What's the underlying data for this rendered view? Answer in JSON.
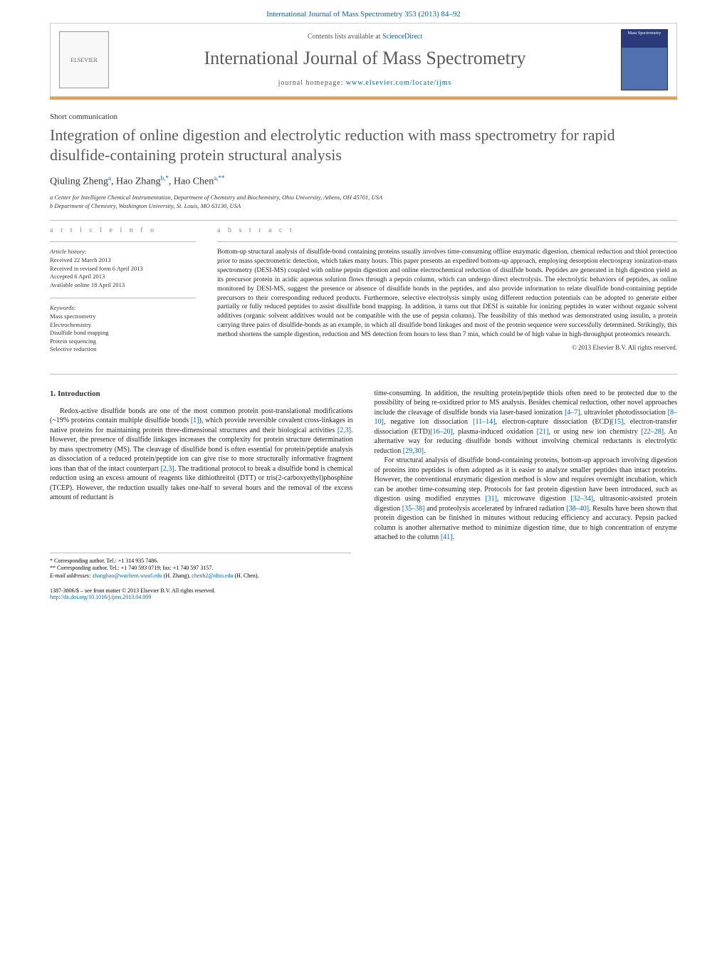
{
  "colors": {
    "link": "#0066aa",
    "accent_bar": "#e8a23d",
    "heading_gray": "#5a5a5a",
    "rule": "#bbbbbb",
    "body_text": "#222222",
    "muted": "#888888"
  },
  "typography": {
    "journal_name_size_pt": 26,
    "title_size_pt": 22,
    "body_size_pt": 10,
    "abstract_size_pt": 9.5,
    "small_size_pt": 8.5
  },
  "header": {
    "citation": "International Journal of Mass Spectrometry 353 (2013) 84–92",
    "contents_at": "Contents lists available at ",
    "contents_link": "ScienceDirect",
    "journal_name": "International Journal of Mass Spectrometry",
    "homepage_label": "journal homepage: ",
    "homepage_url": "www.elsevier.com/locate/ijms",
    "publisher_logo_label": "ELSEVIER",
    "cover_text": "Mass Spectrometry"
  },
  "article": {
    "type": "Short communication",
    "title": "Integration of online digestion and electrolytic reduction with mass spectrometry for rapid disulfide-containing protein structural analysis",
    "authors_html": "Qiuling Zheng",
    "author_a_sup": "a",
    "author2": "Hao Zhang",
    "author_b_sup": "b,*",
    "author3": "Hao Chen",
    "author_c_sup": "a,**",
    "affil_a": "a Center for Intelligent Chemical Instrumentation, Department of Chemistry and Biochemistry, Ohio University, Athens, OH 45701, USA",
    "affil_b": "b Department of Chemistry, Washington University, St. Louis, MO 63130, USA"
  },
  "article_info": {
    "heading": "a r t i c l e   i n f o",
    "history_label": "Article history:",
    "received": "Received 22 March 2013",
    "revised": "Received in revised form 6 April 2013",
    "accepted": "Accepted 6 April 2013",
    "online": "Available online 18 April 2013",
    "keywords_label": "Keywords:",
    "keywords": [
      "Mass spectrometry",
      "Electrochemistry",
      "Disulfide bond mapping",
      "Protein sequencing",
      "Selective reduction"
    ]
  },
  "abstract": {
    "heading": "a b s t r a c t",
    "text": "Bottom-up structural analysis of disulfide-bond containing proteins usually involves time-consuming offline enzymatic digestion, chemical reduction and thiol protection prior to mass spectrometric detection, which takes many hours. This paper presents an expedited bottom-up approach, employing desorption electrospray ionization-mass spectrometry (DESI-MS) coupled with online pepsin digestion and online electrochemical reduction of disulfide bonds. Peptides are generated in high digestion yield as its precursor protein in acidic aqueous solution flows through a pepsin column, which can undergo direct electrolysis. The electrolytic behaviors of peptides, as online monitored by DESI-MS, suggest the presence or absence of disulfide bonds in the peptides, and also provide information to relate disulfide bond-containing peptide precursors to their corresponding reduced products. Furthermore, selective electrolysis simply using different reduction potentials can be adopted to generate either partially or fully reduced peptides to assist disulfide bond mapping. In addition, it turns out that DESI is suitable for ionizing peptides in water without organic solvent additives (organic solvent additives would not be compatible with the use of pepsin column). The feasibility of this method was demonstrated using insulin, a protein carrying three pairs of disulfide-bonds as an example, in which all disulfide bond linkages and most of the protein sequence were successfully determined. Strikingly, this method shortens the sample digestion, reduction and MS detection from hours to less than 7 min, which could be of high value in high-throughput proteomics research.",
    "copyright": "© 2013 Elsevier B.V. All rights reserved."
  },
  "body": {
    "section1_heading": "1. Introduction",
    "col1_p1_a": "Redox-active disulfide bonds are one of the most common protein post-translational modifications (~19% proteins contain multiple disulfide bonds ",
    "ref1": "[1]",
    "col1_p1_b": "), which provide reversible covalent cross-linkages in native proteins for maintaining protein three-dimensional structures and their biological activities ",
    "ref2_3": "[2,3]",
    "col1_p1_c": ". However, the presence of disulfide linkages increases the complexity for protein structure determination by mass spectrometry (MS). The cleavage of disulfide bond is often essential for protein/peptide analysis as dissociation of a reduced protein/peptide ion can give rise to more structurally informative fragment ions than that of the intact counterpart ",
    "col1_p1_d": ". The traditional protocol to break a disulfide bond is chemical reduction using an excess amount of reagents like dithiothreitol (DTT) or tris(2-carboxyethyl)phosphine (TCEP). However, the reduction usually takes one-half to several hours and the removal of the excess amount of reductant is",
    "col2_p1_a": "time-consuming. In addition, the resulting protein/peptide thiols often need to be protected due to the possibility of being re-oxidized prior to MS analysis. Besides chemical reduction, other novel approaches include the cleavage of disulfide bonds via laser-based ionization ",
    "ref4_7": "[4–7]",
    "col2_p1_b": ", ultraviolet photodissociation ",
    "ref8_10": "[8–10]",
    "col2_p1_c": ", negative ion dissociation ",
    "ref11_14": "[11–14]",
    "col2_p1_d": ", electron-capture dissociation (ECD)",
    "ref15": "[15]",
    "col2_p1_e": ", electron-transfer dissociation (ETD)",
    "ref16_20": "[16–20]",
    "col2_p1_f": ", plasma-induced oxidation ",
    "ref21": "[21]",
    "col2_p1_g": ", or using new ion chemistry ",
    "ref22_28": "[22–28]",
    "col2_p1_h": ". An alternative way for reducing disulfide bonds without involving chemical reductants is electrolytic reduction ",
    "ref29_30": "[29,30]",
    "col2_p1_i": ".",
    "col2_p2_a": "For structural analysis of disulfide bond-containing proteins, bottom-up approach involving digestion of proteins into peptides is often adopted as it is easier to analyze smaller peptides than intact proteins. However, the conventional enzymatic digestion method is slow and requires overnight incubation, which can be another time-consuming step. Protocols for fast protein digestion have been introduced, such as digestion using modified enzymes ",
    "ref31": "[31]",
    "col2_p2_b": ", microwave digestion ",
    "ref32_34": "[32–34]",
    "col2_p2_c": ", ultrasonic-assisted protein digestion ",
    "ref35_38": "[35–38]",
    "col2_p2_d": " and proteolysis accelerated by infrared radiation ",
    "ref38_40": "[38–40]",
    "col2_p2_e": ". Results have been shown that protein digestion can be finished in minutes without reducing efficiency and accuracy. Pepsin packed column is another alternative method to minimize digestion time, due to high concentration of enzyme attached to the column ",
    "ref41": "[41]",
    "col2_p2_f": "."
  },
  "footnotes": {
    "corr1": "* Corresponding author. Tel.: +1 314 935 7486.",
    "corr2": "** Corresponding author. Tel.: +1 740 593 0719; fax: +1 740 597 3157.",
    "email_label": "E-mail addresses: ",
    "email1": "zhanghao@wuchem.wustl.edu",
    "email1_name": " (H. Zhang), ",
    "email2": "chenh2@ohio.edu",
    "email2_name": " (H. Chen)."
  },
  "doi": {
    "issn": "1387-3806/$ – see front matter © 2013 Elsevier B.V. All rights reserved.",
    "doi_url": "http://dx.doi.org/10.1016/j.ijms.2013.04.009"
  }
}
